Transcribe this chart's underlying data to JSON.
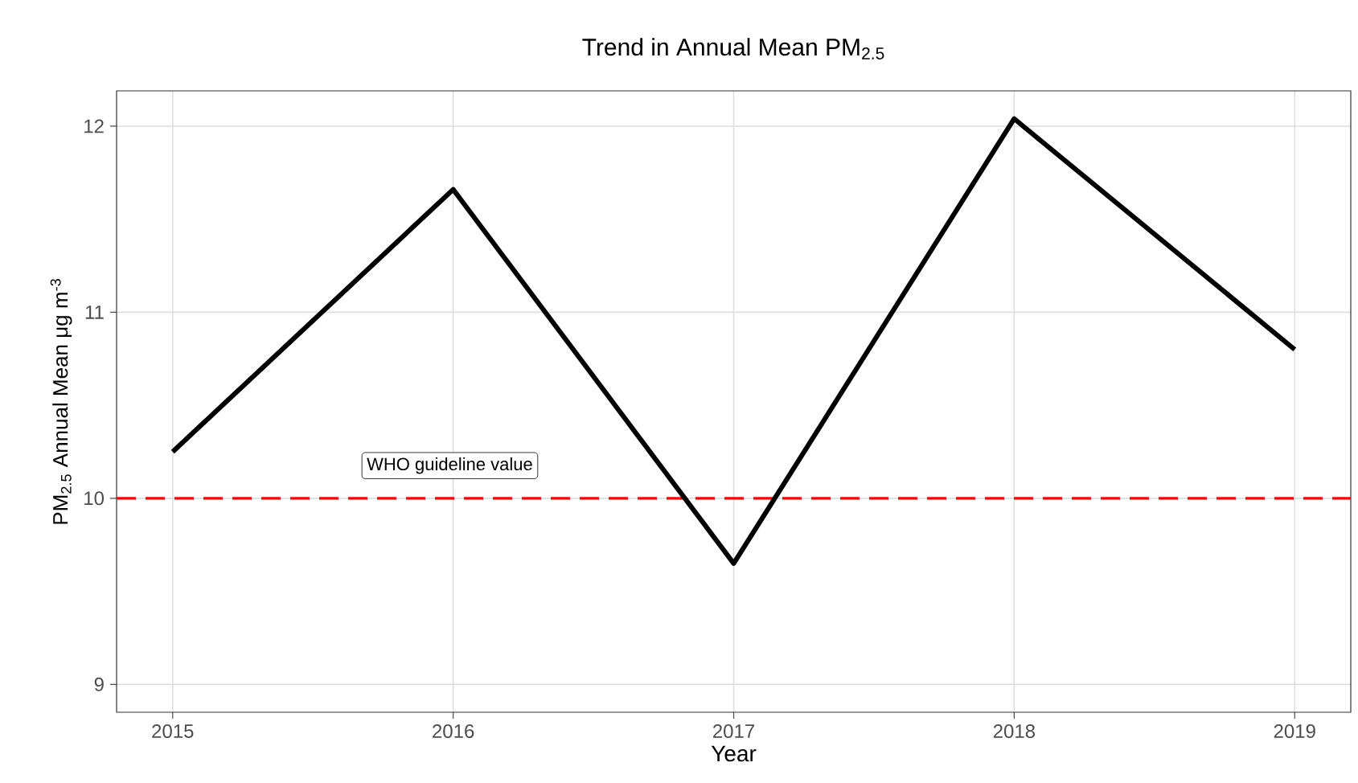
{
  "chart_data": {
    "type": "line",
    "title": "Trend in Annual Mean PM$_{2.5}$",
    "xlabel": "Year",
    "ylabel": "PM$_{2.5}$ Annual Mean  μg m$^{-3}$",
    "x": [
      2015,
      2016,
      2017,
      2018,
      2019
    ],
    "series": [
      {
        "color": "#000000",
        "values": [
          10.25,
          11.66,
          9.65,
          12.04,
          10.8
        ]
      }
    ],
    "xlim": [
      2014.8,
      2019.2
    ],
    "ylim": [
      8.85,
      12.19
    ],
    "xticks": [
      2015,
      2016,
      2017,
      2018,
      2019
    ],
    "yticks": [
      9,
      10,
      11,
      12
    ],
    "ref_lines": [
      {
        "axis": "y",
        "value": 10,
        "label": "WHO guideline value",
        "color": "#ff0000",
        "line_style": "dashed"
      }
    ],
    "grid": true,
    "marker": "none",
    "line_style": "solid"
  }
}
